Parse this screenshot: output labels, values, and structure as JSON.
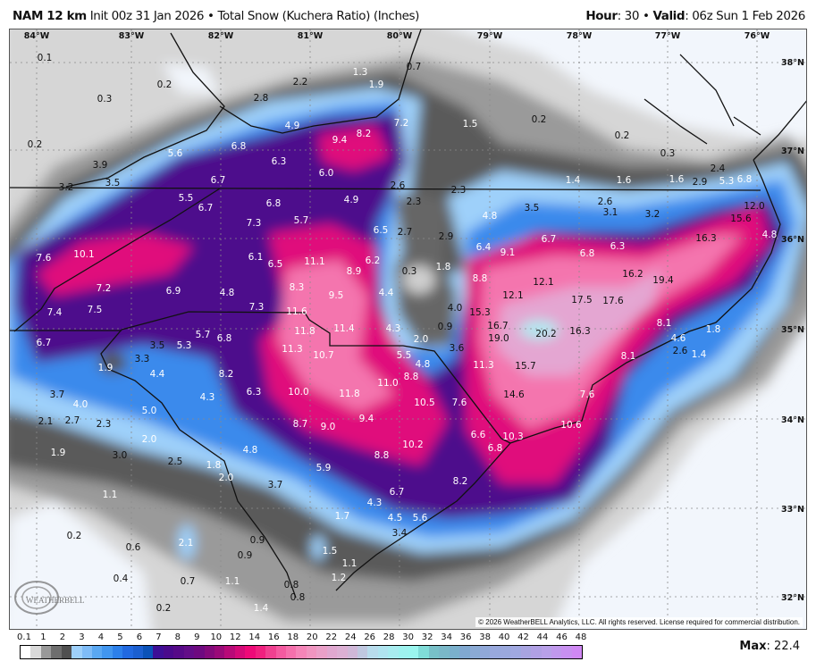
{
  "header": {
    "model": "NAM 12 km",
    "init": "Init 00z 31 Jan 2026",
    "sep": "•",
    "product": "Total Snow (Kuchera Ratio) (Inches)",
    "hour_label": "Hour",
    "hour": ": 30",
    "valid_label": "Valid",
    "valid": ": 06z Sun 1 Feb 2026"
  },
  "map": {
    "lon_labels": [
      "84°W",
      "83°W",
      "82°W",
      "81°W",
      "80°W",
      "79°W",
      "78°W",
      "77°W",
      "76°W"
    ],
    "lat_labels": [
      "38°N",
      "37°N",
      "36°N",
      "35°N",
      "34°N",
      "33°N",
      "32°N"
    ],
    "values": [
      "0.1",
      "0.2",
      "0.3",
      "0.2",
      "1.3",
      "1.9",
      "0.7",
      "2.2",
      "2.8",
      "4.9",
      "7.2",
      "9.4",
      "8.2",
      "6.8",
      "5.6",
      "6.3",
      "6.0",
      "3.9",
      "3.5",
      "3.2",
      "6.7",
      "2.6",
      "1.5",
      "0.2",
      "0.2",
      "0.3",
      "1.4",
      "1.6",
      "1.6",
      "2.9",
      "2.4",
      "5.3",
      "6.8",
      "12.0",
      "15.6",
      "2.3",
      "2.3",
      "5.5",
      "6.7",
      "6.8",
      "4.9",
      "5.7",
      "7.3",
      "3.5",
      "2.6",
      "3.1",
      "3.2",
      "4.8",
      "6.5",
      "2.7",
      "2.9",
      "6.4",
      "9.1",
      "6.7",
      "6.8",
      "6.3",
      "16.3",
      "4.8",
      "7.6",
      "10.1",
      "6.1",
      "6.5",
      "11.1",
      "8.9",
      "6.2",
      "0.3",
      "1.8",
      "8.8",
      "12.1",
      "12.1",
      "17.5",
      "17.6",
      "16.2",
      "19.4",
      "7.2",
      "6.9",
      "4.8",
      "8.3",
      "9.5",
      "4.4",
      "7.4",
      "7.5",
      "7.3",
      "11.6",
      "4.0",
      "15.3",
      "16.7",
      "11.8",
      "11.4",
      "4.3",
      "0.9",
      "19.0",
      "20.2",
      "16.3",
      "8.1",
      "1.8",
      "6.7",
      "3.5",
      "5.3",
      "5.7",
      "6.8",
      "11.3",
      "2.0",
      "3.6",
      "4.6",
      "2.6",
      "1.4",
      "10.7",
      "5.5",
      "4.8",
      "11.3",
      "15.7",
      "8.1",
      "3.3",
      "1.9",
      "4.4",
      "8.2",
      "11.0",
      "8.8",
      "6.3",
      "10.0",
      "11.8",
      "14.6",
      "7.6",
      "3.7",
      "4.3",
      "4.0",
      "10.5",
      "7.6",
      "5.0",
      "9.4",
      "10.6",
      "2.1",
      "2.7",
      "2.3",
      "8.7",
      "9.0",
      "6.6",
      "10.3",
      "2.0",
      "6.8",
      "1.9",
      "3.0",
      "10.2",
      "2.5",
      "4.8",
      "8.8",
      "1.8",
      "2.0",
      "5.9",
      "8.2",
      "3.7",
      "6.7",
      "1.1",
      "4.3",
      "1.7",
      "4.5",
      "5.6",
      "3.4",
      "2.1",
      "0.9",
      "0.2",
      "0.6",
      "0.9",
      "1.5",
      "1.1",
      "1.2",
      "0.4",
      "0.7",
      "1.1",
      "0.8",
      "0.8",
      "1.4",
      "0.2"
    ],
    "logo_text": "WeatherBELL",
    "copyright": "© 2026 WeatherBELL Analytics, LLC. All rights reserved. License required for commercial distribution."
  },
  "colorbar": {
    "units": "Inches",
    "ticks": [
      "0.1",
      "1",
      "2",
      "3",
      "4",
      "5",
      "6",
      "7",
      "8",
      "9",
      "10",
      "12",
      "14",
      "16",
      "18",
      "20",
      "22",
      "24",
      "26",
      "28",
      "30",
      "32",
      "34",
      "36",
      "38",
      "40",
      "42",
      "44",
      "46",
      "48"
    ],
    "colors": [
      "#ffffff",
      "#d9d9d9",
      "#999999",
      "#6e6e6e",
      "#505050",
      "#9ed0fa",
      "#7fbcf7",
      "#5aa8f2",
      "#4196ef",
      "#2c80ea",
      "#2169e0",
      "#1b5fd0",
      "#0b52b8",
      "#3d0f96",
      "#4a0a8c",
      "#560a88",
      "#630d88",
      "#6e0a80",
      "#830a7a",
      "#9a0a78",
      "#b80a78",
      "#d40a78",
      "#ee0a78",
      "#f0207f",
      "#f04090",
      "#f45aa0",
      "#f570ac",
      "#f585b8",
      "#f095c0",
      "#eaa0c8",
      "#e0a8d0",
      "#dcb0d4",
      "#d0b8d8",
      "#c0c8e0",
      "#b8dcec",
      "#b0e4ef",
      "#a8ecef",
      "#9ef2ee",
      "#9af5ee",
      "#80dcd8",
      "#78c0c8",
      "#7ab8c8",
      "#7ab0cc",
      "#80a8d0",
      "#8aaad4",
      "#90a8d8",
      "#98a8dc",
      "#9aa8dc",
      "#a0a8e0",
      "#a8a4e0",
      "#b0a0e4",
      "#b8a0e8",
      "#c098ec",
      "#c890f0",
      "#d088f4"
    ]
  },
  "footer": {
    "max_label": "Max",
    "max_value": ": 22.4"
  }
}
